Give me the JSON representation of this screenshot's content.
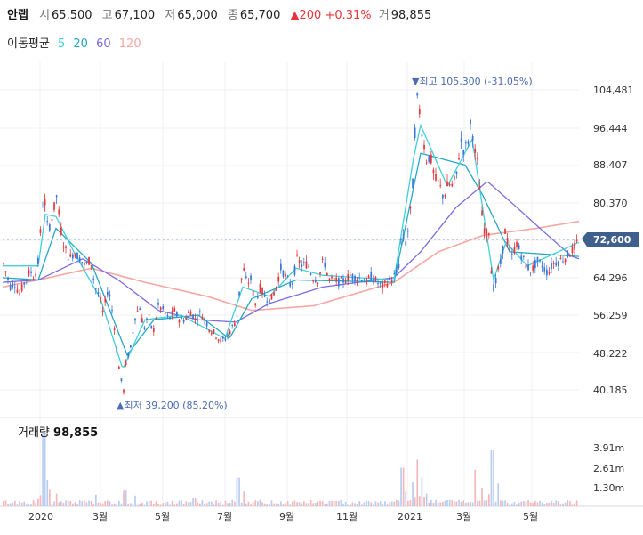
{
  "header": {
    "stock_name": "안랩",
    "open_label": "시",
    "open": "65,500",
    "high_label": "고",
    "high": "67,100",
    "low_label": "저",
    "low": "65,000",
    "close_label": "종",
    "close": "65,700",
    "change": "▲200 +0.31%",
    "volume_label": "거",
    "volume": "98,855",
    "ma_title": "이동평균",
    "ma_periods": [
      "5",
      "20",
      "60",
      "120"
    ]
  },
  "colors": {
    "up": "#e8343a",
    "down": "#3a76d6",
    "ma5": "#3fd0d8",
    "ma20": "#24a8c4",
    "ma60": "#7b6ce0",
    "ma120": "#f5a7a0",
    "price_badge": "#3f5f8c"
  },
  "chart_data": {
    "type": "candlestick",
    "x_tick_labels": [
      "2020",
      "3월",
      "5월",
      "7월",
      "9월",
      "11월",
      "2021",
      "3월",
      "5월"
    ],
    "y_tick_labels": [
      "104,481",
      "96,444",
      "88,407",
      "80,370",
      "72,600",
      "64,296",
      "56,259",
      "48,222",
      "40,185"
    ],
    "y_range": [
      36000,
      108500
    ],
    "current_price": "72,600",
    "current_price_value": 72600,
    "high_annotation": "▼최고 105,300 (-31.05%)",
    "low_annotation": "▲최저 39,200 (85.20%)",
    "price_path": [
      [
        0,
        67500
      ],
      [
        8,
        62500
      ],
      [
        12,
        63500
      ],
      [
        18,
        61000
      ],
      [
        25,
        64000
      ],
      [
        30,
        66000
      ],
      [
        35,
        64500
      ],
      [
        40,
        68500
      ],
      [
        43,
        79000
      ],
      [
        46,
        82000
      ],
      [
        50,
        74500
      ],
      [
        55,
        77500
      ],
      [
        60,
        82000
      ],
      [
        64,
        75500
      ],
      [
        68,
        71500
      ],
      [
        74,
        68500
      ],
      [
        80,
        70000
      ],
      [
        86,
        68500
      ],
      [
        92,
        67000
      ],
      [
        98,
        68500
      ],
      [
        103,
        62500
      ],
      [
        108,
        60500
      ],
      [
        112,
        57000
      ],
      [
        118,
        62500
      ],
      [
        124,
        55500
      ],
      [
        128,
        48000
      ],
      [
        132,
        43000
      ],
      [
        135,
        40000
      ],
      [
        138,
        46500
      ],
      [
        143,
        49500
      ],
      [
        148,
        56000
      ],
      [
        153,
        58500
      ],
      [
        158,
        53500
      ],
      [
        163,
        56500
      ],
      [
        168,
        52500
      ],
      [
        174,
        58500
      ],
      [
        180,
        57500
      ],
      [
        186,
        55500
      ],
      [
        192,
        57500
      ],
      [
        198,
        55500
      ],
      [
        204,
        55500
      ],
      [
        210,
        57500
      ],
      [
        216,
        55500
      ],
      [
        222,
        57000
      ],
      [
        228,
        55000
      ],
      [
        232,
        53500
      ],
      [
        238,
        52500
      ],
      [
        244,
        51000
      ],
      [
        250,
        51500
      ],
      [
        256,
        53500
      ],
      [
        262,
        55500
      ],
      [
        266,
        62500
      ],
      [
        270,
        66500
      ],
      [
        274,
        63000
      ],
      [
        278,
        64500
      ],
      [
        283,
        58500
      ],
      [
        288,
        62500
      ],
      [
        294,
        60500
      ],
      [
        300,
        59500
      ],
      [
        306,
        62000
      ],
      [
        312,
        66500
      ],
      [
        318,
        64500
      ],
      [
        324,
        62500
      ],
      [
        330,
        68500
      ],
      [
        336,
        67000
      ],
      [
        342,
        67500
      ],
      [
        348,
        64500
      ],
      [
        354,
        64000
      ],
      [
        360,
        68500
      ],
      [
        366,
        64000
      ],
      [
        372,
        64000
      ],
      [
        378,
        63500
      ],
      [
        384,
        64000
      ],
      [
        390,
        65000
      ],
      [
        396,
        64500
      ],
      [
        402,
        64500
      ],
      [
        408,
        63500
      ],
      [
        414,
        65000
      ],
      [
        420,
        63500
      ],
      [
        426,
        62500
      ],
      [
        432,
        63500
      ],
      [
        438,
        64500
      ],
      [
        444,
        66000
      ],
      [
        448,
        74000
      ],
      [
        452,
        71500
      ],
      [
        456,
        75500
      ],
      [
        460,
        83500
      ],
      [
        463,
        96500
      ],
      [
        466,
        104000
      ],
      [
        469,
        98000
      ],
      [
        472,
        94000
      ],
      [
        476,
        89500
      ],
      [
        480,
        90500
      ],
      [
        485,
        85500
      ],
      [
        490,
        84500
      ],
      [
        495,
        81500
      ],
      [
        500,
        84500
      ],
      [
        505,
        84000
      ],
      [
        510,
        86500
      ],
      [
        514,
        94000
      ],
      [
        518,
        91500
      ],
      [
        522,
        93000
      ],
      [
        526,
        98000
      ],
      [
        530,
        91500
      ],
      [
        534,
        88000
      ],
      [
        538,
        78000
      ],
      [
        542,
        73500
      ],
      [
        546,
        74500
      ],
      [
        549,
        65000
      ],
      [
        552,
        61500
      ],
      [
        556,
        66000
      ],
      [
        560,
        68000
      ],
      [
        564,
        74500
      ],
      [
        568,
        71500
      ],
      [
        572,
        69000
      ],
      [
        577,
        72000
      ],
      [
        582,
        69500
      ],
      [
        588,
        67000
      ],
      [
        594,
        66000
      ],
      [
        600,
        68000
      ],
      [
        606,
        67000
      ],
      [
        612,
        65500
      ],
      [
        618,
        67500
      ],
      [
        624,
        68000
      ],
      [
        630,
        68500
      ],
      [
        636,
        69500
      ],
      [
        642,
        71000
      ],
      [
        648,
        72600
      ]
    ],
    "ma_anchors": {
      "ma5": [
        [
          0,
          67000
        ],
        [
          40,
          67000
        ],
        [
          48,
          78000
        ],
        [
          60,
          77500
        ],
        [
          80,
          70000
        ],
        [
          110,
          60000
        ],
        [
          135,
          45000
        ],
        [
          160,
          55500
        ],
        [
          200,
          56500
        ],
        [
          250,
          51500
        ],
        [
          270,
          62500
        ],
        [
          300,
          60500
        ],
        [
          330,
          66500
        ],
        [
          360,
          65000
        ],
        [
          440,
          64000
        ],
        [
          462,
          90000
        ],
        [
          470,
          97000
        ],
        [
          500,
          84000
        ],
        [
          528,
          94000
        ],
        [
          552,
          64000
        ],
        [
          566,
          72000
        ],
        [
          590,
          67000
        ],
        [
          648,
          72000
        ]
      ],
      "ma20": [
        [
          0,
          64500
        ],
        [
          40,
          64000
        ],
        [
          60,
          75000
        ],
        [
          100,
          67500
        ],
        [
          140,
          48000
        ],
        [
          170,
          55500
        ],
        [
          220,
          56500
        ],
        [
          255,
          51500
        ],
        [
          280,
          60000
        ],
        [
          330,
          64000
        ],
        [
          440,
          63500
        ],
        [
          470,
          91000
        ],
        [
          520,
          88500
        ],
        [
          540,
          82000
        ],
        [
          570,
          70000
        ],
        [
          648,
          69000
        ]
      ],
      "ma60": [
        [
          0,
          63500
        ],
        [
          40,
          64000
        ],
        [
          90,
          68500
        ],
        [
          130,
          64000
        ],
        [
          175,
          57500
        ],
        [
          220,
          55500
        ],
        [
          262,
          55000
        ],
        [
          300,
          59000
        ],
        [
          360,
          62500
        ],
        [
          440,
          64500
        ],
        [
          470,
          70000
        ],
        [
          510,
          79500
        ],
        [
          545,
          85000
        ],
        [
          575,
          80000
        ],
        [
          610,
          74000
        ],
        [
          640,
          69000
        ],
        [
          648,
          68500
        ]
      ],
      "ma120": [
        [
          0,
          62500
        ],
        [
          40,
          64000
        ],
        [
          100,
          66500
        ],
        [
          160,
          63500
        ],
        [
          230,
          60500
        ],
        [
          280,
          57500
        ],
        [
          350,
          58500
        ],
        [
          440,
          63500
        ],
        [
          490,
          70000
        ],
        [
          540,
          73500
        ],
        [
          600,
          75000
        ],
        [
          648,
          76500
        ]
      ]
    },
    "volume_label": "거래량",
    "volume_value": "98,855",
    "volume_tick_labels": [
      "3.91m",
      "2.61m",
      "1.30m"
    ],
    "volume_range": [
      0,
      4200000
    ],
    "volume_spikes": [
      [
        46,
        3600000
      ],
      [
        50,
        1300000
      ],
      [
        60,
        600000
      ],
      [
        104,
        550000
      ],
      [
        136,
        750000
      ],
      [
        148,
        500000
      ],
      [
        214,
        400000
      ],
      [
        264,
        1400000
      ],
      [
        270,
        700000
      ],
      [
        448,
        1900000
      ],
      [
        452,
        700000
      ],
      [
        460,
        1200000
      ],
      [
        466,
        2300000
      ],
      [
        470,
        1400000
      ],
      [
        476,
        600000
      ],
      [
        530,
        1800000
      ],
      [
        538,
        900000
      ],
      [
        550,
        2800000
      ],
      [
        556,
        1100000
      ]
    ]
  }
}
